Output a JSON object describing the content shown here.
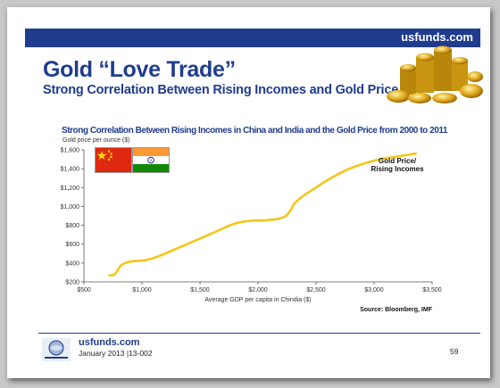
{
  "header": {
    "site": "usfunds.com",
    "title": "Gold “Love Trade”",
    "subtitle": "Strong Correlation Between Rising Incomes and Gold Price"
  },
  "footer": {
    "site": "usfunds.com",
    "date_code": "January 2013 |13-002",
    "page_number": "59"
  },
  "icons": [
    "gold-coins-icon",
    "china-flag-icon",
    "india-flag-icon",
    "us-global-investors-logo-icon"
  ],
  "colors": {
    "brand_blue": "#1f3c8f",
    "line": "#f5c518",
    "china_red": "#de2910",
    "india_saffron": "#ff9933",
    "india_green": "#138808"
  },
  "chart_data": {
    "type": "line",
    "title": "Strong Correlation Between Rising Incomes in China and India and the Gold Price from 2000 to 2011",
    "ylabel": "Gold price per ounce ($)",
    "xlabel": "Average GDP per capita in Chindia ($)",
    "source": "Source: Bloomberg, IMF",
    "xlim": [
      500,
      3500
    ],
    "ylim": [
      200,
      1600
    ],
    "xticks": [
      500,
      1000,
      1500,
      2000,
      2500,
      3000,
      3500
    ],
    "yticks": [
      200,
      400,
      600,
      800,
      1000,
      1200,
      1400,
      1600
    ],
    "xtick_labels": [
      "$500",
      "$1,000",
      "$1,500",
      "$2,000",
      "$2,500",
      "$3,000",
      "$3,500"
    ],
    "ytick_labels": [
      "$200",
      "$400",
      "$600",
      "$800",
      "$1,000",
      "$1,200",
      "$1,400",
      "$1,600"
    ],
    "grid": false,
    "series": [
      {
        "name": "Gold Price/ Rising Incomes",
        "label_lines": [
          "Gold Price/",
          "Rising Incomes"
        ],
        "x": [
          720,
          760,
          790,
          820,
          870,
          930,
          1000,
          1080,
          1200,
          1350,
          1500,
          1650,
          1780,
          1880,
          1980,
          2080,
          2180,
          2240,
          2280,
          2320,
          2400,
          2500,
          2600,
          2750,
          2900,
          3050,
          3200,
          3360
        ],
        "y": [
          270,
          275,
          320,
          375,
          405,
          420,
          425,
          445,
          500,
          580,
          660,
          740,
          810,
          840,
          850,
          855,
          870,
          900,
          960,
          1040,
          1120,
          1200,
          1280,
          1380,
          1450,
          1500,
          1530,
          1560
        ]
      }
    ]
  }
}
